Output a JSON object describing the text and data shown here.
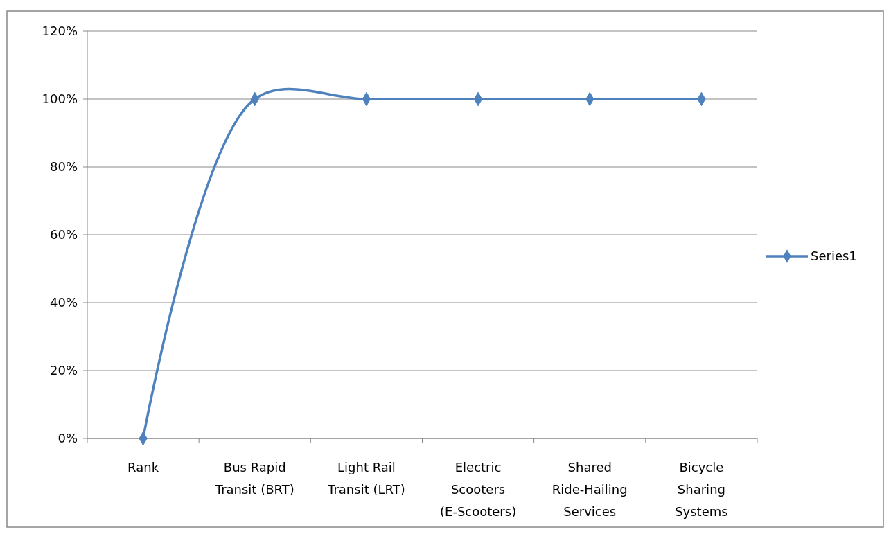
{
  "chart_data": {
    "type": "line",
    "categories": [
      "Rank",
      "Bus Rapid Transit (BRT)",
      "Light Rail Transit (LRT)",
      "Electric Scooters (E-Scooters)",
      "Shared Ride-Hailing Services",
      "Bicycle Sharing Systems"
    ],
    "series": [
      {
        "name": "Series1",
        "color": "#4f81bd",
        "values": [
          0,
          100,
          100,
          100,
          100,
          100
        ]
      }
    ],
    "ylim": [
      0,
      120
    ],
    "yticks": [
      {
        "value": 0,
        "label": "0%"
      },
      {
        "value": 20,
        "label": "20%"
      },
      {
        "value": 40,
        "label": "40%"
      },
      {
        "value": 60,
        "label": "60%"
      },
      {
        "value": 80,
        "label": "80%"
      },
      {
        "value": 100,
        "label": "100%"
      },
      {
        "value": 120,
        "label": "120%"
      }
    ],
    "grid": "y",
    "legend": "right",
    "marker": "diamond",
    "line_style": "solid"
  }
}
